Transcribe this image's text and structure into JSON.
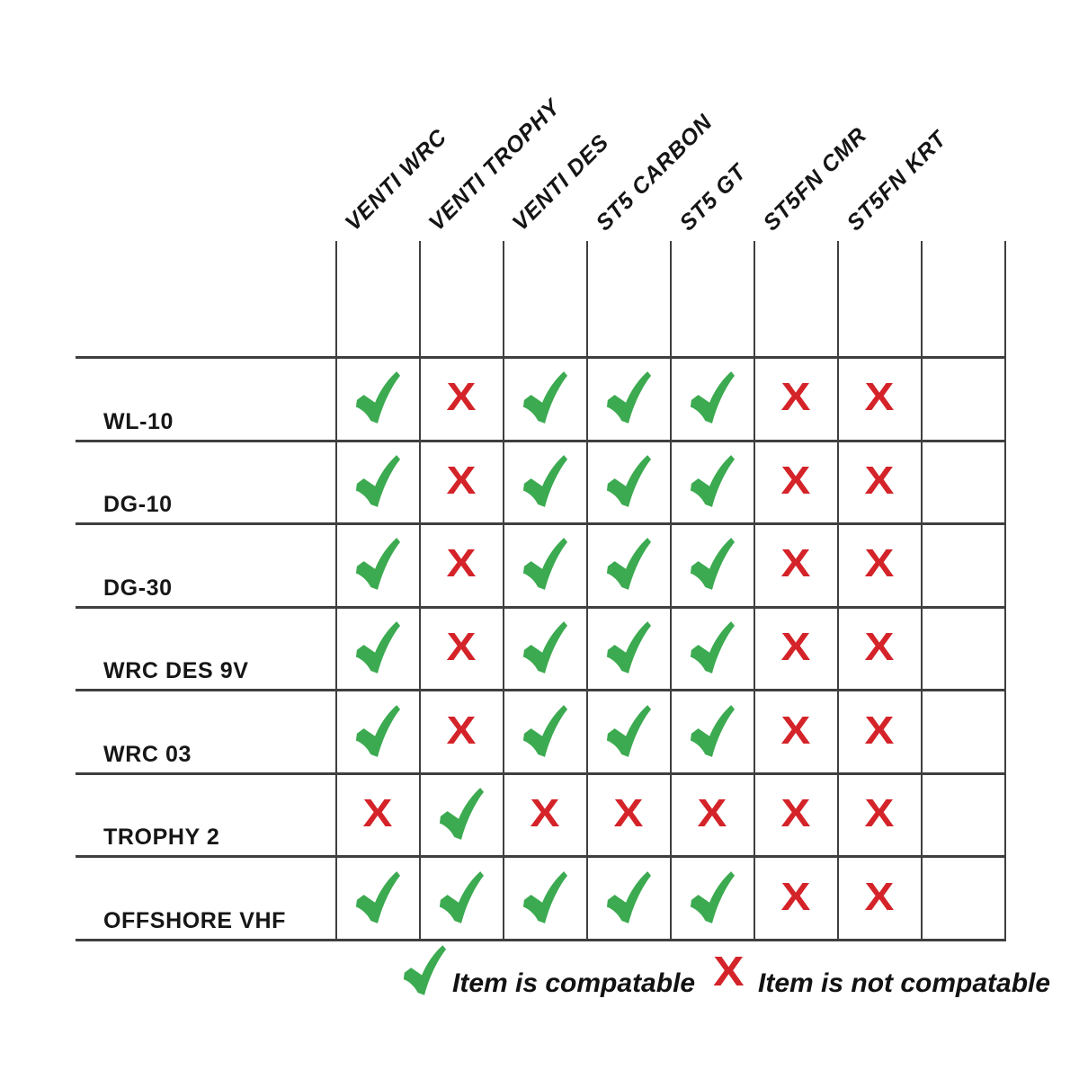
{
  "chart_data": {
    "type": "table",
    "title": "",
    "columns": [
      "VENTI WRC",
      "VENTI TROPHY",
      "VENTI DES",
      "ST5 CARBON",
      "ST5 GT",
      "ST5FN CMR",
      "ST5FN KRT",
      ""
    ],
    "rows": [
      {
        "label": "WL-10",
        "values": [
          "check",
          "x",
          "check",
          "check",
          "check",
          "x",
          "x",
          ""
        ]
      },
      {
        "label": "DG-10",
        "values": [
          "check",
          "x",
          "check",
          "check",
          "check",
          "x",
          "x",
          ""
        ]
      },
      {
        "label": "DG-30",
        "values": [
          "check",
          "x",
          "check",
          "check",
          "check",
          "x",
          "x",
          ""
        ]
      },
      {
        "label": "WRC DES 9V",
        "values": [
          "check",
          "x",
          "check",
          "check",
          "check",
          "x",
          "x",
          ""
        ]
      },
      {
        "label": "WRC 03",
        "values": [
          "check",
          "x",
          "check",
          "check",
          "check",
          "x",
          "x",
          ""
        ]
      },
      {
        "label": "TROPHY 2",
        "values": [
          "x",
          "check",
          "x",
          "x",
          "x",
          "x",
          "x",
          ""
        ]
      },
      {
        "label": "OFFSHORE VHF",
        "values": [
          "check",
          "check",
          "check",
          "check",
          "check",
          "x",
          "x",
          ""
        ]
      }
    ],
    "legend": [
      {
        "symbol": "check",
        "label": "Item is compatable"
      },
      {
        "symbol": "x",
        "label": "Item is not compatable"
      }
    ],
    "icons": {
      "check": "check-mark",
      "x": "X"
    },
    "colors": {
      "check": "#3caa50",
      "x": "#d42329",
      "grid": "#3f3f3f",
      "text": "#161616"
    },
    "layout": {
      "grid": "on",
      "legend_position": "bottom",
      "empty_trailing_column": true,
      "column_headers_rotated_deg": -45
    }
  }
}
